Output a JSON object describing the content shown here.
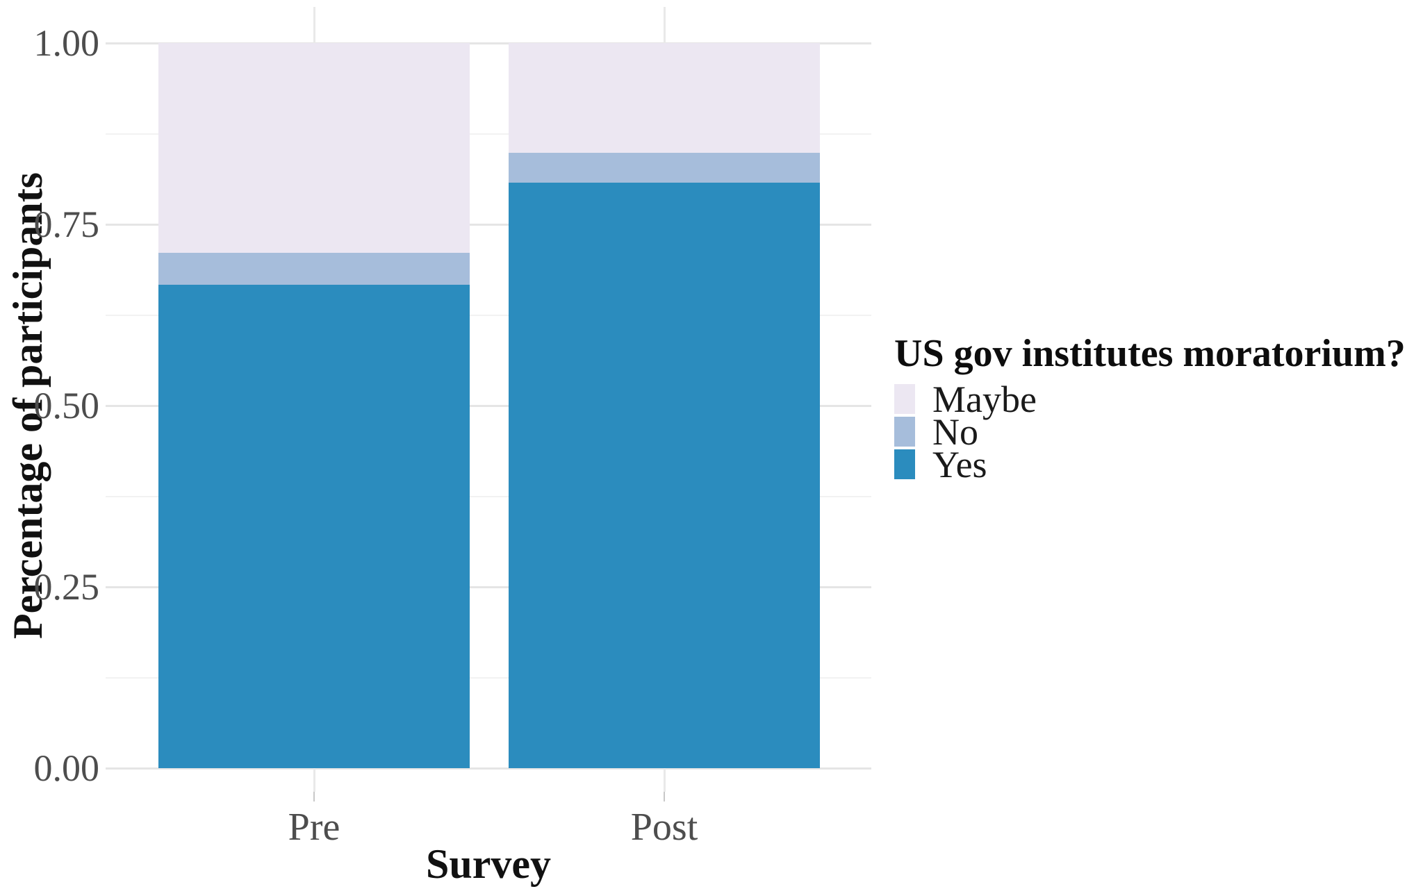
{
  "chart_data": {
    "type": "bar",
    "subtype": "stacked-normalized",
    "title": "",
    "xlabel": "Survey",
    "ylabel": "Percentage of participants",
    "categories": [
      "Pre",
      "Post"
    ],
    "series": [
      {
        "name": "Maybe",
        "color": "#ECE7F2",
        "values": [
          0.289,
          0.151
        ]
      },
      {
        "name": "No",
        "color": "#A6BDDB",
        "values": [
          0.044,
          0.042
        ]
      },
      {
        "name": "Yes",
        "color": "#2B8CBE",
        "values": [
          0.667,
          0.807
        ]
      }
    ],
    "stack_order_bottom_to_top": [
      "Yes",
      "No",
      "Maybe"
    ],
    "ylim": [
      0,
      1
    ],
    "ytick_values": [
      0,
      0.25,
      0.5,
      0.75,
      1
    ],
    "ytick_labels": [
      "0.00",
      "0.25",
      "0.50",
      "0.75",
      "1.00"
    ],
    "grid": {
      "horizontal_major": true,
      "horizontal_minor": true,
      "vertical_at_categories": true
    },
    "legend": {
      "title": "US gov institutes moratorium?",
      "position": "right",
      "entries": [
        "Maybe",
        "No",
        "Yes"
      ]
    }
  },
  "colors": {
    "maybe": "#ECE7F2",
    "no": "#A6BDDB",
    "yes": "#2B8CBE",
    "grid_major": "#e5e5e5",
    "grid_minor": "#f2f2f2",
    "grid_vertical": "#e9e9e9",
    "tick_mark": "#c8c8c8",
    "tick_label": "#4d4d4d",
    "axis_title": "#111111",
    "background": "#ffffff"
  }
}
